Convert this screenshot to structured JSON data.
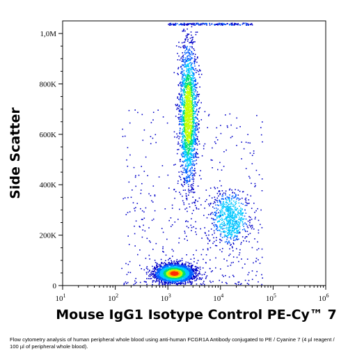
{
  "chart_data": {
    "type": "scatter",
    "plot_style": "flow-cytometry pseudocolor density dot plot",
    "xlabel": "Mouse IgG1 Isotype Control PE-Cy™ 7",
    "ylabel": "Side Scatter",
    "x_scale": "log",
    "xlim": [
      10,
      1000000
    ],
    "ylim": [
      0,
      1050000
    ],
    "x_ticks": [
      {
        "value": 10,
        "base": "10",
        "exp": "1"
      },
      {
        "value": 100,
        "base": "10",
        "exp": "2"
      },
      {
        "value": 1000,
        "base": "10",
        "exp": "3"
      },
      {
        "value": 10000,
        "base": "10",
        "exp": "4"
      },
      {
        "value": 100000,
        "base": "10",
        "exp": "5"
      },
      {
        "value": 1000000,
        "base": "10",
        "exp": "6"
      }
    ],
    "y_ticks": [
      {
        "value": 0,
        "label": "0"
      },
      {
        "value": 200000,
        "label": "200K"
      },
      {
        "value": 400000,
        "label": "400K"
      },
      {
        "value": 600000,
        "label": "600K"
      },
      {
        "value": 800000,
        "label": "800K"
      },
      {
        "value": 1000000,
        "label": "1,0M"
      }
    ],
    "density_colors": [
      "#0000c8",
      "#0060ff",
      "#00c8ff",
      "#00e070",
      "#c8ff00",
      "#ffb000",
      "#ff2a00"
    ],
    "populations": [
      {
        "x_center": 1300,
        "x_spread": 0.18,
        "y_center": 50000,
        "y_spread": 18000,
        "peak_density": "high"
      },
      {
        "x_center": 2400,
        "x_spread": 0.085,
        "y_center": 680000,
        "y_spread": 140000,
        "peak_density": "medium"
      },
      {
        "x_center": 15000,
        "x_spread": 0.17,
        "y_center": 270000,
        "y_spread": 50000,
        "peak_density": "low"
      }
    ],
    "grid": false,
    "legend": "none"
  },
  "caption": "Flow cytometry analysis of human peripheral whole blood using anti-human FCGR1A Antibody conjugated to PE / Cyanine 7 (4 µl reagent / 100 µl of peripheral whole blood)."
}
